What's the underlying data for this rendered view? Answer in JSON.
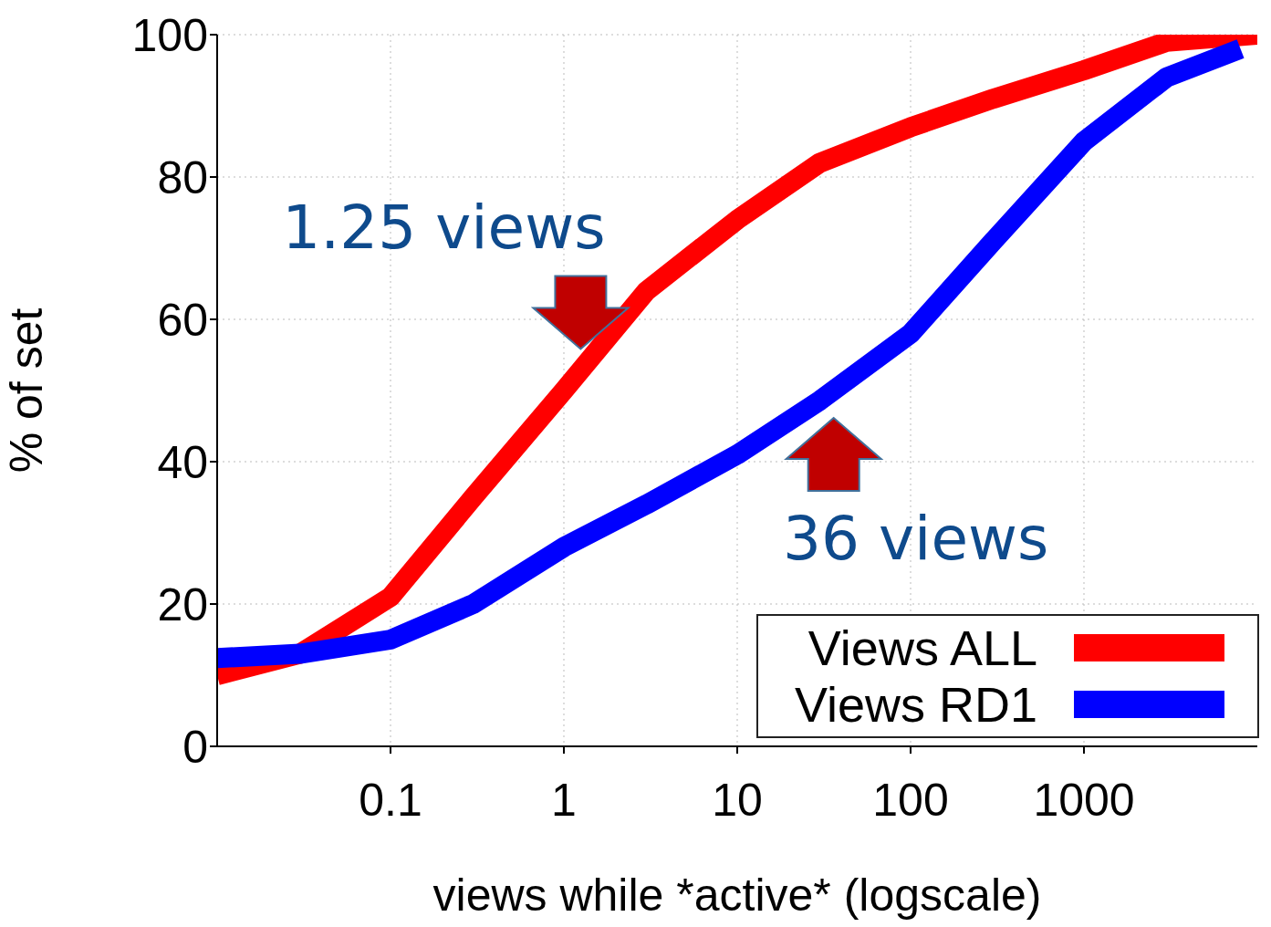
{
  "chart_data": {
    "type": "line",
    "xlabel": "views while *active* (logscale)",
    "ylabel": "% of set",
    "log": "x",
    "xlim": [
      0.01,
      10000
    ],
    "xticks": [
      0.1,
      1,
      10,
      100,
      1000
    ],
    "ylim": [
      0,
      100
    ],
    "yticks": [
      0,
      20,
      40,
      60,
      80,
      100
    ],
    "grid": true,
    "legend": "bottom right",
    "marker": "none",
    "line_style": "solid",
    "series": [
      {
        "name": "Views ALL",
        "color": "#ff0000",
        "x": [
          0.01,
          0.03,
          0.1,
          0.3,
          1,
          3,
          10,
          30,
          100,
          300,
          1000,
          3000,
          10000
        ],
        "values": [
          10,
          13,
          21,
          35,
          50,
          64,
          74,
          82,
          87,
          91,
          95,
          99,
          100
        ]
      },
      {
        "name": "Views RD1",
        "color": "#0000ff",
        "x": [
          0.01,
          0.03,
          0.1,
          0.3,
          1,
          3,
          10,
          30,
          100,
          300,
          1000,
          3000,
          8000
        ],
        "values": [
          12.4,
          13,
          15,
          20,
          28,
          34,
          41,
          48.6,
          58,
          71,
          85,
          94,
          98
        ]
      }
    ],
    "annotations": [
      {
        "text": "1.25 views",
        "x": 1.25,
        "y": 52
      },
      {
        "text": "36 views",
        "x": 36,
        "y": 50
      }
    ]
  }
}
